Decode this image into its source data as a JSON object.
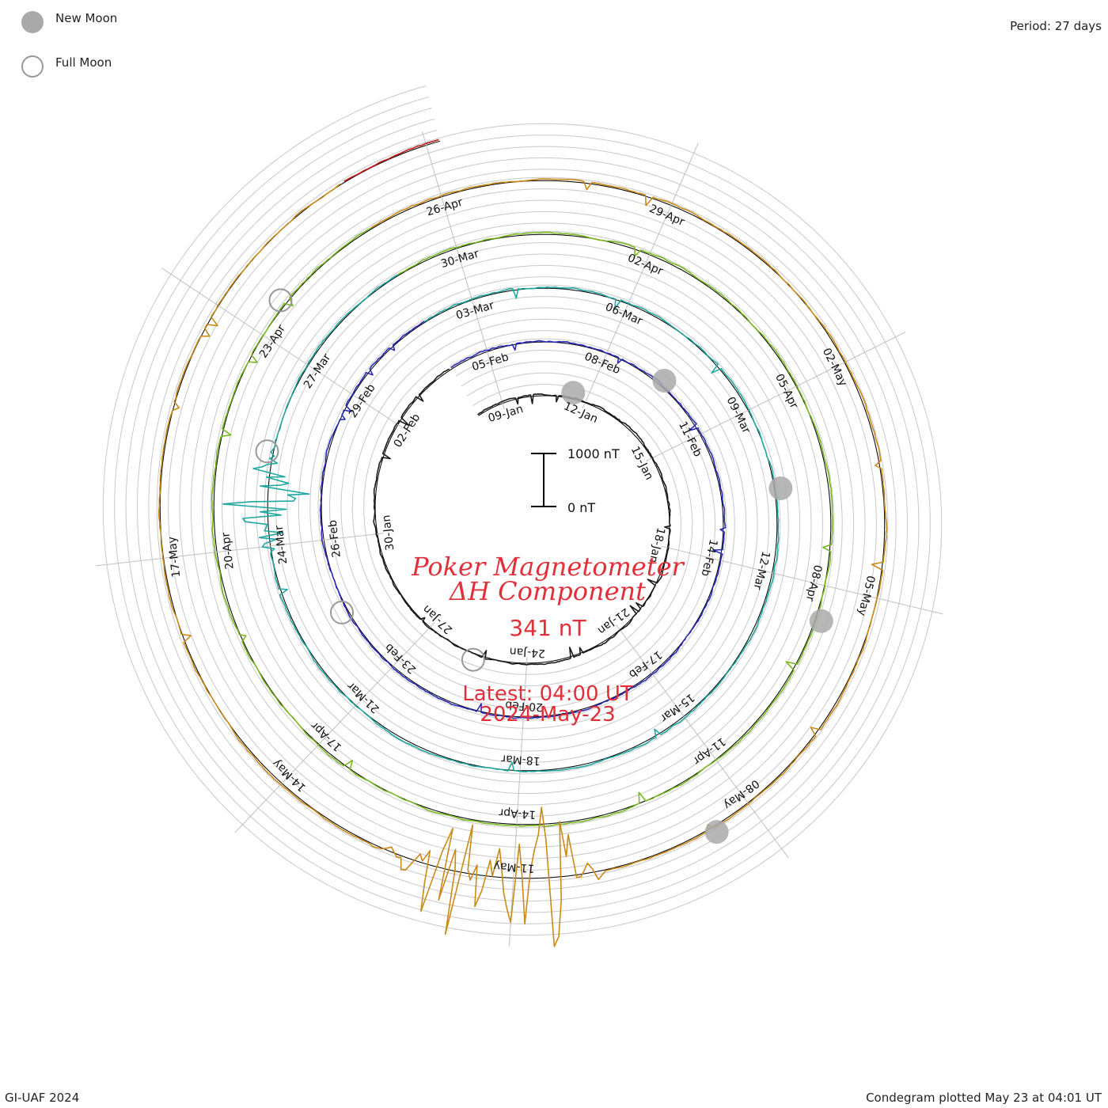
{
  "corner_text": {
    "period": "Period: 27 days",
    "credit": "GI-UAF 2024",
    "plotted": "Condegram plotted May 23 at 04:01 UT"
  },
  "legend": {
    "new_moon": "New Moon",
    "full_moon": "Full Moon",
    "new_moon_color": "#aaaaaa",
    "full_moon_color": "#999999"
  },
  "title": {
    "line1": "Poker Magnetometer",
    "line2": "ΔH Component",
    "value": "341 nT",
    "latest": "Latest: 04:00 UT",
    "date": "2024-May-23",
    "color": "#e0303a"
  },
  "scale_bar": {
    "top_label": "1000 nT",
    "bottom_label": "0 nT"
  },
  "chart_data": {
    "type": "line",
    "subtype": "condegram-spiral",
    "period_days": 27,
    "start_date": "2024-01-08",
    "end_date": "2024-05-23",
    "scale_nT": [
      0,
      1000
    ],
    "grid": true,
    "series": [
      {
        "cycle": 1,
        "color": "#1a1a1a",
        "labels": [
          "09-Jan",
          "12-Jan",
          "15-Jan",
          "18-Jan",
          "21-Jan",
          "24-Jan",
          "27-Jan",
          "30-Jan",
          "02-Feb"
        ]
      },
      {
        "cycle": 2,
        "color": "#2a2ab8",
        "labels": [
          "05-Feb",
          "08-Feb",
          "11-Feb",
          "14-Feb",
          "17-Feb",
          "20-Feb",
          "23-Feb",
          "26-Feb",
          "29-Feb"
        ]
      },
      {
        "cycle": 3,
        "color": "#20a8a0",
        "labels": [
          "03-Mar",
          "06-Mar",
          "09-Mar",
          "12-Mar",
          "15-Mar",
          "18-Mar",
          "21-Mar",
          "24-Mar",
          "27-Mar"
        ]
      },
      {
        "cycle": 4,
        "color": "#7ab820",
        "labels": [
          "30-Mar",
          "02-Apr",
          "05-Apr",
          "08-Apr",
          "11-Apr",
          "14-Apr",
          "17-Apr",
          "20-Apr",
          "23-Apr"
        ]
      },
      {
        "cycle": 5,
        "color": "#c98a18",
        "labels": [
          "26-Apr",
          "29-Apr",
          "02-May",
          "05-May",
          "08-May",
          "11-May",
          "14-May",
          "17-May"
        ]
      },
      {
        "cycle": 6,
        "color": "#c01818",
        "labels": []
      }
    ],
    "storm_events": [
      {
        "date": "2024-03-24",
        "amplitude_nT": 950
      },
      {
        "date": "2024-05-10",
        "amplitude_nT": 1500
      },
      {
        "date": "2024-05-11",
        "amplitude_nT": 1200
      }
    ],
    "new_moons": [
      "2024-01-11",
      "2024-02-09",
      "2024-03-10",
      "2024-04-08",
      "2024-05-08"
    ],
    "full_moons": [
      "2024-01-25",
      "2024-02-24",
      "2024-03-25",
      "2024-04-23"
    ]
  }
}
